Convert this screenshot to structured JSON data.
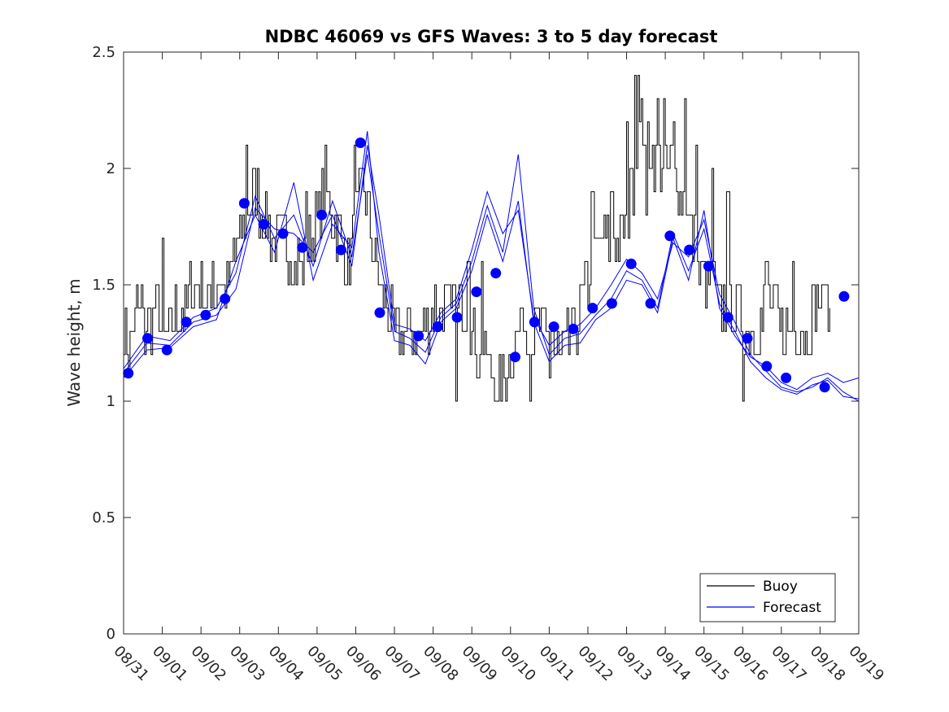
{
  "chart_data": {
    "type": "line",
    "title": "NDBC 46069 vs GFS Waves: 3 to 5 day forecast",
    "xlabel": "",
    "ylabel": "Wave height, m",
    "x_tick_labels": [
      "08/31",
      "09/01",
      "09/02",
      "09/03",
      "09/04",
      "09/05",
      "09/06",
      "09/07",
      "09/08",
      "09/09",
      "09/10",
      "09/11",
      "09/12",
      "09/13",
      "09/14",
      "09/15",
      "09/16",
      "09/17",
      "09/18",
      "09/19"
    ],
    "y_ticks": [
      0,
      0.5,
      1,
      1.5,
      2,
      2.5
    ],
    "y_tick_labels": [
      "0",
      "0.5",
      "1",
      "1.5",
      "2",
      "2.5"
    ],
    "xlim": [
      0,
      19
    ],
    "ylim": [
      0,
      2.5
    ],
    "grid": false,
    "legend": {
      "position": "bottom-right",
      "entries": [
        {
          "label": "Buoy",
          "color": "#000000"
        },
        {
          "label": "Forecast",
          "color": "#0000ff"
        }
      ]
    },
    "colors": {
      "buoy": "#000000",
      "forecast": "#0000ff",
      "marker": "#0000ff"
    },
    "buoy_anchors": [
      [
        0.0,
        1.3
      ],
      [
        0.1,
        1.2
      ],
      [
        0.2,
        1.3
      ],
      [
        0.35,
        1.4
      ],
      [
        0.5,
        1.3
      ],
      [
        0.7,
        1.3
      ],
      [
        0.85,
        1.4
      ],
      [
        1.0,
        1.3
      ],
      [
        1.2,
        1.3
      ],
      [
        1.4,
        1.4
      ],
      [
        1.6,
        1.4
      ],
      [
        1.8,
        1.5
      ],
      [
        2.0,
        1.5
      ],
      [
        2.2,
        1.4
      ],
      [
        2.4,
        1.5
      ],
      [
        2.6,
        1.5
      ],
      [
        2.8,
        1.6
      ],
      [
        3.0,
        1.7
      ],
      [
        3.2,
        1.85
      ],
      [
        3.4,
        1.9
      ],
      [
        3.6,
        1.8
      ],
      [
        3.8,
        1.7
      ],
      [
        4.0,
        1.7
      ],
      [
        4.2,
        1.7
      ],
      [
        4.4,
        1.6
      ],
      [
        4.6,
        1.6
      ],
      [
        4.8,
        1.7
      ],
      [
        5.0,
        1.8
      ],
      [
        5.2,
        1.9
      ],
      [
        5.4,
        1.8
      ],
      [
        5.6,
        1.7
      ],
      [
        5.8,
        1.6
      ],
      [
        6.0,
        1.8
      ],
      [
        6.2,
        1.9
      ],
      [
        6.4,
        1.7
      ],
      [
        6.6,
        1.5
      ],
      [
        6.8,
        1.4
      ],
      [
        7.0,
        1.3
      ],
      [
        7.2,
        1.3
      ],
      [
        7.4,
        1.3
      ],
      [
        7.6,
        1.3
      ],
      [
        7.8,
        1.3
      ],
      [
        8.0,
        1.4
      ],
      [
        8.2,
        1.4
      ],
      [
        8.4,
        1.4
      ],
      [
        8.6,
        1.4
      ],
      [
        8.8,
        1.4
      ],
      [
        9.0,
        1.3
      ],
      [
        9.2,
        1.2
      ],
      [
        9.4,
        1.2
      ],
      [
        9.6,
        1.1
      ],
      [
        9.8,
        1.1
      ],
      [
        10.0,
        1.2
      ],
      [
        10.2,
        1.3
      ],
      [
        10.4,
        1.3
      ],
      [
        10.6,
        1.3
      ],
      [
        10.8,
        1.3
      ],
      [
        11.0,
        1.3
      ],
      [
        11.2,
        1.2
      ],
      [
        11.4,
        1.2
      ],
      [
        11.6,
        1.3
      ],
      [
        11.8,
        1.4
      ],
      [
        12.0,
        1.5
      ],
      [
        12.2,
        1.6
      ],
      [
        12.4,
        1.7
      ],
      [
        12.6,
        1.7
      ],
      [
        12.8,
        1.7
      ],
      [
        13.0,
        1.8
      ],
      [
        13.2,
        2.0
      ],
      [
        13.4,
        2.2
      ],
      [
        13.6,
        2.1
      ],
      [
        13.8,
        2.0
      ],
      [
        14.0,
        2.0
      ],
      [
        14.2,
        2.0
      ],
      [
        14.4,
        1.9
      ],
      [
        14.6,
        1.8
      ],
      [
        14.8,
        1.6
      ],
      [
        15.0,
        1.5
      ],
      [
        15.2,
        1.5
      ],
      [
        15.4,
        1.4
      ],
      [
        15.6,
        1.4
      ],
      [
        15.8,
        1.4
      ],
      [
        16.0,
        1.3
      ],
      [
        16.2,
        1.3
      ],
      [
        16.4,
        1.3
      ],
      [
        16.6,
        1.4
      ],
      [
        16.8,
        1.4
      ],
      [
        17.0,
        1.3
      ],
      [
        17.2,
        1.3
      ],
      [
        17.4,
        1.3
      ],
      [
        17.6,
        1.3
      ],
      [
        17.8,
        1.4
      ],
      [
        18.0,
        1.4
      ],
      [
        18.2,
        1.4
      ]
    ],
    "buoy_spikes": [
      [
        0.45,
        1.5
      ],
      [
        1.0,
        1.7
      ],
      [
        2.3,
        1.6
      ],
      [
        2.75,
        1.6
      ],
      [
        3.15,
        2.1
      ],
      [
        4.7,
        1.9
      ],
      [
        5.2,
        2.1
      ],
      [
        5.95,
        2.1
      ],
      [
        8.3,
        1.5
      ],
      [
        8.55,
        1.5
      ],
      [
        8.6,
        1.0
      ],
      [
        8.9,
        1.6
      ],
      [
        9.25,
        1.6
      ],
      [
        9.65,
        1.0
      ],
      [
        9.75,
        1.0
      ],
      [
        10.3,
        1.4
      ],
      [
        10.5,
        1.0
      ],
      [
        11.0,
        1.1
      ],
      [
        12.1,
        1.9
      ],
      [
        12.6,
        1.9
      ],
      [
        13.0,
        2.2
      ],
      [
        13.1,
        2.0
      ],
      [
        13.2,
        2.4
      ],
      [
        13.3,
        2.4
      ],
      [
        13.5,
        1.8
      ],
      [
        13.8,
        2.3
      ],
      [
        13.95,
        2.3
      ],
      [
        14.2,
        2.2
      ],
      [
        14.5,
        2.3
      ],
      [
        14.8,
        2.1
      ],
      [
        15.2,
        2.0
      ],
      [
        15.6,
        1.9
      ],
      [
        16.0,
        1.0
      ],
      [
        16.4,
        1.2
      ],
      [
        16.6,
        1.6
      ],
      [
        17.3,
        1.6
      ],
      [
        17.8,
        1.5
      ],
      [
        18.1,
        1.5
      ]
    ],
    "forecast_series": [
      {
        "name": "Forecast run 1",
        "x": [
          0.0,
          0.6,
          1.2,
          1.8,
          2.4,
          2.9,
          3.4,
          3.9,
          4.4,
          4.9,
          5.4,
          5.9,
          6.3,
          6.6,
          7.0,
          7.4,
          7.8,
          8.2,
          8.6,
          9.0,
          9.4,
          9.8,
          10.2,
          10.6,
          11.0,
          11.4,
          11.8,
          12.2,
          12.6,
          13.0,
          13.4,
          13.8,
          14.2,
          14.6,
          15.0,
          15.4,
          15.8,
          16.2,
          16.6,
          17.0,
          17.4,
          17.8,
          18.2,
          18.6,
          19.0
        ],
        "y": [
          1.12,
          1.25,
          1.24,
          1.34,
          1.37,
          1.48,
          1.83,
          1.74,
          1.72,
          1.64,
          1.8,
          1.58,
          2.1,
          1.8,
          1.33,
          1.31,
          1.26,
          1.38,
          1.44,
          1.65,
          1.9,
          1.72,
          1.82,
          1.36,
          1.24,
          1.3,
          1.33,
          1.4,
          1.5,
          1.61,
          1.55,
          1.44,
          1.68,
          1.62,
          1.78,
          1.46,
          1.34,
          1.2,
          1.13,
          1.06,
          1.04,
          1.06,
          1.1,
          1.04,
          1.0
        ]
      },
      {
        "name": "Forecast run 2",
        "x": [
          0.0,
          0.6,
          1.2,
          1.8,
          2.4,
          2.9,
          3.4,
          3.9,
          4.4,
          4.9,
          5.4,
          5.9,
          6.3,
          6.6,
          7.0,
          7.4,
          7.8,
          8.2,
          8.6,
          9.0,
          9.4,
          9.8,
          10.2,
          10.6,
          11.0,
          11.4,
          11.8,
          12.2,
          12.6,
          13.0,
          13.4,
          13.8,
          14.2,
          14.6,
          15.0,
          15.4,
          15.8,
          16.2,
          16.6,
          17.0,
          17.4,
          17.8,
          18.2,
          18.6,
          19.0
        ],
        "y": [
          1.14,
          1.28,
          1.26,
          1.36,
          1.4,
          1.55,
          1.88,
          1.7,
          1.8,
          1.58,
          1.86,
          1.62,
          2.06,
          1.72,
          1.3,
          1.27,
          1.21,
          1.36,
          1.42,
          1.6,
          1.84,
          1.64,
          2.06,
          1.4,
          1.2,
          1.27,
          1.29,
          1.37,
          1.44,
          1.56,
          1.52,
          1.4,
          1.72,
          1.56,
          1.74,
          1.42,
          1.3,
          1.17,
          1.1,
          1.05,
          1.03,
          1.07,
          1.09,
          1.02,
          1.01
        ]
      },
      {
        "name": "Forecast run 3",
        "x": [
          0.0,
          0.6,
          1.2,
          1.8,
          2.4,
          2.9,
          3.4,
          3.9,
          4.4,
          4.9,
          5.4,
          5.9,
          6.3,
          6.6,
          7.0,
          7.4,
          7.8,
          8.2,
          8.6,
          9.0,
          9.4,
          9.8,
          10.2,
          10.6,
          11.0,
          11.4,
          11.8,
          12.2,
          12.6,
          13.0,
          13.4,
          13.8,
          14.2,
          14.6,
          15.0,
          15.4,
          15.8,
          16.2,
          16.6,
          17.0,
          17.4,
          17.8,
          18.2,
          18.6,
          19.0
        ],
        "y": [
          1.1,
          1.22,
          1.23,
          1.32,
          1.35,
          1.6,
          1.8,
          1.64,
          1.94,
          1.52,
          1.76,
          1.66,
          2.16,
          1.64,
          1.26,
          1.24,
          1.16,
          1.34,
          1.4,
          1.56,
          1.8,
          1.6,
          1.86,
          1.34,
          1.17,
          1.24,
          1.25,
          1.35,
          1.4,
          1.52,
          1.5,
          1.38,
          1.7,
          1.52,
          1.82,
          1.4,
          1.28,
          1.19,
          1.15,
          1.08,
          1.05,
          1.1,
          1.12,
          1.08,
          1.1
        ]
      }
    ],
    "forecast_markers": {
      "x": [
        0.12,
        0.62,
        1.12,
        1.62,
        2.12,
        2.62,
        3.12,
        3.62,
        4.12,
        4.62,
        5.12,
        5.62,
        6.12,
        6.62,
        7.62,
        8.12,
        8.62,
        9.12,
        9.62,
        10.12,
        10.62,
        11.12,
        11.62,
        12.12,
        12.62,
        13.12,
        13.62,
        14.12,
        14.62,
        15.12,
        15.62,
        16.12,
        16.62,
        17.12,
        18.12,
        18.62
      ],
      "y": [
        1.12,
        1.27,
        1.22,
        1.34,
        1.37,
        1.44,
        1.85,
        1.76,
        1.72,
        1.66,
        1.8,
        1.65,
        2.11,
        1.38,
        1.28,
        1.32,
        1.36,
        1.47,
        1.55,
        1.19,
        1.34,
        1.32,
        1.31,
        1.4,
        1.42,
        1.59,
        1.42,
        1.71,
        1.65,
        1.58,
        1.36,
        1.27,
        1.15,
        1.1,
        1.06,
        1.45
      ]
    }
  }
}
